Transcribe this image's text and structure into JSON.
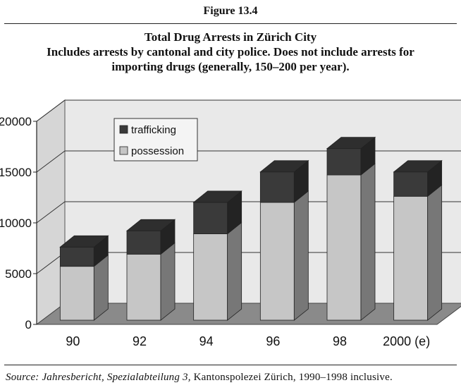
{
  "figure_label": "Figure 13.4",
  "title": "Total Drug Arrests in Zürich City",
  "subtitle_line1": "Includes arrests by cantonal and city police. Does not include arrests for",
  "subtitle_line2": "importing drugs (generally, 150–200 per year).",
  "source": {
    "prefix": "Source:",
    "publication": "Jahresbericht, Spezialabteilung 3,",
    "rest": "Kantonspolezei Zürich, 1990–1998 inclusive."
  },
  "colors": {
    "possession": "#c6c6c6",
    "trafficking": "#3a3a3a",
    "wall": "#e9e9e9",
    "floor": "#8a8a8a"
  },
  "chart_data": {
    "type": "bar",
    "stacked": true,
    "three_d": true,
    "categories": [
      "90",
      "92",
      "94",
      "96",
      "98",
      "2000 (e)"
    ],
    "series": [
      {
        "name": "possession",
        "values": [
          5300,
          6500,
          8500,
          11600,
          14300,
          12200
        ]
      },
      {
        "name": "trafficking",
        "values": [
          1900,
          2300,
          3100,
          3000,
          2600,
          2400
        ]
      }
    ],
    "legend_order": [
      "trafficking",
      "possession"
    ],
    "legend_position": "top-left",
    "ylim": [
      0,
      20000
    ],
    "yticks": [
      "0",
      "5000",
      "10000",
      "15000",
      "20000"
    ],
    "grid": true
  }
}
